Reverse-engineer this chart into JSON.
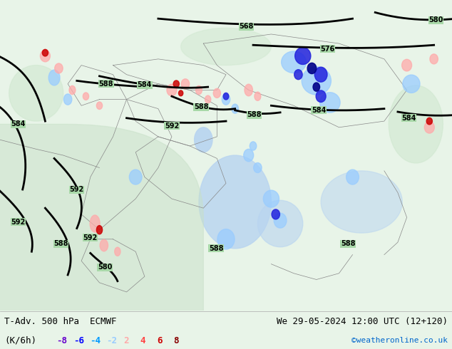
{
  "title_left": "T-Adv. 500 hPa  ECMWF",
  "title_right": "We 29-05-2024 12:00 UTC (12+120)",
  "unit_label": "(K/6h)",
  "legend_values": [
    "-8",
    "-6",
    "-4",
    "-2",
    "2",
    "4",
    "6",
    "8"
  ],
  "legend_colors": [
    "#6600cc",
    "#0000ff",
    "#0099ff",
    "#99ccff",
    "#ffaaaa",
    "#ff4444",
    "#cc0000",
    "#880000"
  ],
  "credit": "©weatheronline.co.uk",
  "bg_color": "#e8f4e8",
  "map_bg": "#a8d8a8",
  "bottom_bar_color": "#ffffff",
  "bottom_bar_height": 0.11,
  "font_size_title": 9,
  "font_size_legend": 9,
  "font_size_credit": 8,
  "fig_width": 6.34,
  "fig_height": 4.9,
  "dpi": 100
}
